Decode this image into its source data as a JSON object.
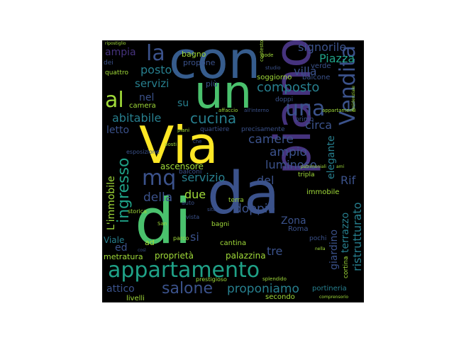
{
  "palette": {
    "purple": "#46337e",
    "indigo": "#3b528b",
    "blue": "#365c8d",
    "teal": "#277f8e",
    "cyan": "#1fa187",
    "green": "#4ac16d",
    "lime": "#a0da39",
    "yellow": "#fde725"
  },
  "words": [
    {
      "id": "con",
      "text": "con"
    },
    {
      "id": "un",
      "text": "un"
    },
    {
      "id": "via",
      "text": "Via"
    },
    {
      "id": "di",
      "text": "di"
    },
    {
      "id": "da",
      "text": "da"
    },
    {
      "id": "piano",
      "text": "piano"
    },
    {
      "id": "appartamento",
      "text": "appartamento"
    },
    {
      "id": "vendita",
      "text": "Vendita"
    },
    {
      "id": "una",
      "text": "una"
    },
    {
      "id": "al",
      "text": "al"
    },
    {
      "id": "la",
      "text": "la"
    },
    {
      "id": "mq",
      "text": "mq"
    },
    {
      "id": "ingresso",
      "text": "ingresso"
    },
    {
      "id": "salone",
      "text": "salone"
    },
    {
      "id": "proponiamo",
      "text": "proponiamo"
    },
    {
      "id": "cucina",
      "text": "cucina"
    },
    {
      "id": "composto",
      "text": "composto"
    },
    {
      "id": "ristrutturato",
      "text": "ristrutturato"
    },
    {
      "id": "signorile",
      "text": "signorile"
    },
    {
      "id": "piazza",
      "text": "Piazza"
    },
    {
      "id": "villa",
      "text": "villa"
    },
    {
      "id": "ampia",
      "text": "ampia"
    },
    {
      "id": "posto",
      "text": "posto"
    },
    {
      "id": "servizi",
      "text": "servizi"
    },
    {
      "id": "nel",
      "text": "nel"
    },
    {
      "id": "su",
      "text": "su"
    },
    {
      "id": "abitabile",
      "text": "abitabile"
    },
    {
      "id": "letto",
      "text": "letto"
    },
    {
      "id": "camere",
      "text": "camere"
    },
    {
      "id": "ampio",
      "text": "ampio"
    },
    {
      "id": "luminoso",
      "text": "luminoso"
    },
    {
      "id": "servizio",
      "text": "servizio"
    },
    {
      "id": "del",
      "text": "del"
    },
    {
      "id": "della",
      "text": "della"
    },
    {
      "id": "due",
      "text": "due"
    },
    {
      "id": "si",
      "text": "si"
    },
    {
      "id": "doppio",
      "text": "doppio"
    },
    {
      "id": "zona",
      "text": "Zona"
    },
    {
      "id": "elegante",
      "text": "elegante"
    },
    {
      "id": "circa",
      "text": "circa"
    },
    {
      "id": "rif",
      "text": "Rif"
    },
    {
      "id": "terrazzo",
      "text": "terrazzo"
    },
    {
      "id": "giardino",
      "text": "giardino"
    },
    {
      "id": "tre",
      "text": "tre"
    },
    {
      "id": "limmobile",
      "text": "L'immobile"
    },
    {
      "id": "ed",
      "text": "ed"
    },
    {
      "id": "attico",
      "text": "attico"
    },
    {
      "id": "metratura",
      "text": "metratura"
    },
    {
      "id": "proprieta",
      "text": "proprietà"
    },
    {
      "id": "palazzina",
      "text": "palazzina"
    },
    {
      "id": "livelli",
      "text": "livelli"
    },
    {
      "id": "secondo",
      "text": "secondo"
    },
    {
      "id": "portineria",
      "text": "portineria"
    },
    {
      "id": "cortina",
      "text": "cortina"
    },
    {
      "id": "immobile",
      "text": "immobile"
    },
    {
      "id": "ascensore",
      "text": "ascensore"
    },
    {
      "id": "bagno",
      "text": "bagno"
    },
    {
      "id": "propone",
      "text": "propone"
    },
    {
      "id": "verde",
      "text": "verde"
    },
    {
      "id": "balcone",
      "text": "balcone"
    },
    {
      "id": "camera",
      "text": "camera"
    },
    {
      "id": "soggiorno",
      "text": "soggiorno"
    },
    {
      "id": "quartiere",
      "text": "quartiere"
    },
    {
      "id": "precisamente",
      "text": "precisamente"
    },
    {
      "id": "balconi",
      "text": "balconi"
    },
    {
      "id": "terra",
      "text": "terra"
    },
    {
      "id": "bagni",
      "text": "bagni"
    },
    {
      "id": "cantina",
      "text": "cantina"
    },
    {
      "id": "viale",
      "text": "Viale"
    },
    {
      "id": "roma",
      "text": "Roma"
    },
    {
      "id": "pochi",
      "text": "pochi"
    },
    {
      "id": "tripla",
      "text": "tripla"
    },
    {
      "id": "ad",
      "text": "ad"
    },
    {
      "id": "parco",
      "text": "parco"
    },
    {
      "id": "piu",
      "text": "più"
    },
    {
      "id": "primo",
      "text": "primo"
    },
    {
      "id": "doppi",
      "text": "doppi"
    },
    {
      "id": "quattro",
      "text": "quattro"
    },
    {
      "id": "dei",
      "text": "dei"
    },
    {
      "id": "storica",
      "text": "storica"
    },
    {
      "id": "vista",
      "text": "vista"
    },
    {
      "id": "auto",
      "text": "auto"
    },
    {
      "id": "prestigioso",
      "text": "prestigioso"
    },
    {
      "id": "splendido",
      "text": "splendido"
    },
    {
      "id": "esposizione",
      "text": "esposizione"
    },
    {
      "id": "affaccio",
      "text": "affaccio"
    },
    {
      "id": "allinterno",
      "text": "all'interno"
    },
    {
      "id": "ripostiglio",
      "text": "ripostiglio"
    },
    {
      "id": "contesto",
      "text": "contesto"
    },
    {
      "id": "studio",
      "text": "studio"
    },
    {
      "id": "gode",
      "text": "gode"
    },
    {
      "id": "san",
      "text": "San"
    },
    {
      "id": "cosi",
      "text": "così"
    },
    {
      "id": "nella",
      "text": "nella"
    },
    {
      "id": "piani",
      "text": "piani"
    },
    {
      "id": "appartamenti",
      "text": "appartamenti"
    },
    {
      "id": "residenziale",
      "text": "residenziale"
    },
    {
      "id": "comprensorio",
      "text": "comprensorio"
    },
    {
      "id": "patrimoniali",
      "text": "patrimoniali"
    },
    {
      "id": "che",
      "text": "che"
    },
    {
      "id": "ami",
      "text": "ami"
    },
    {
      "id": "sito",
      "text": "sito"
    },
    {
      "id": "posti",
      "text": "posti"
    }
  ]
}
